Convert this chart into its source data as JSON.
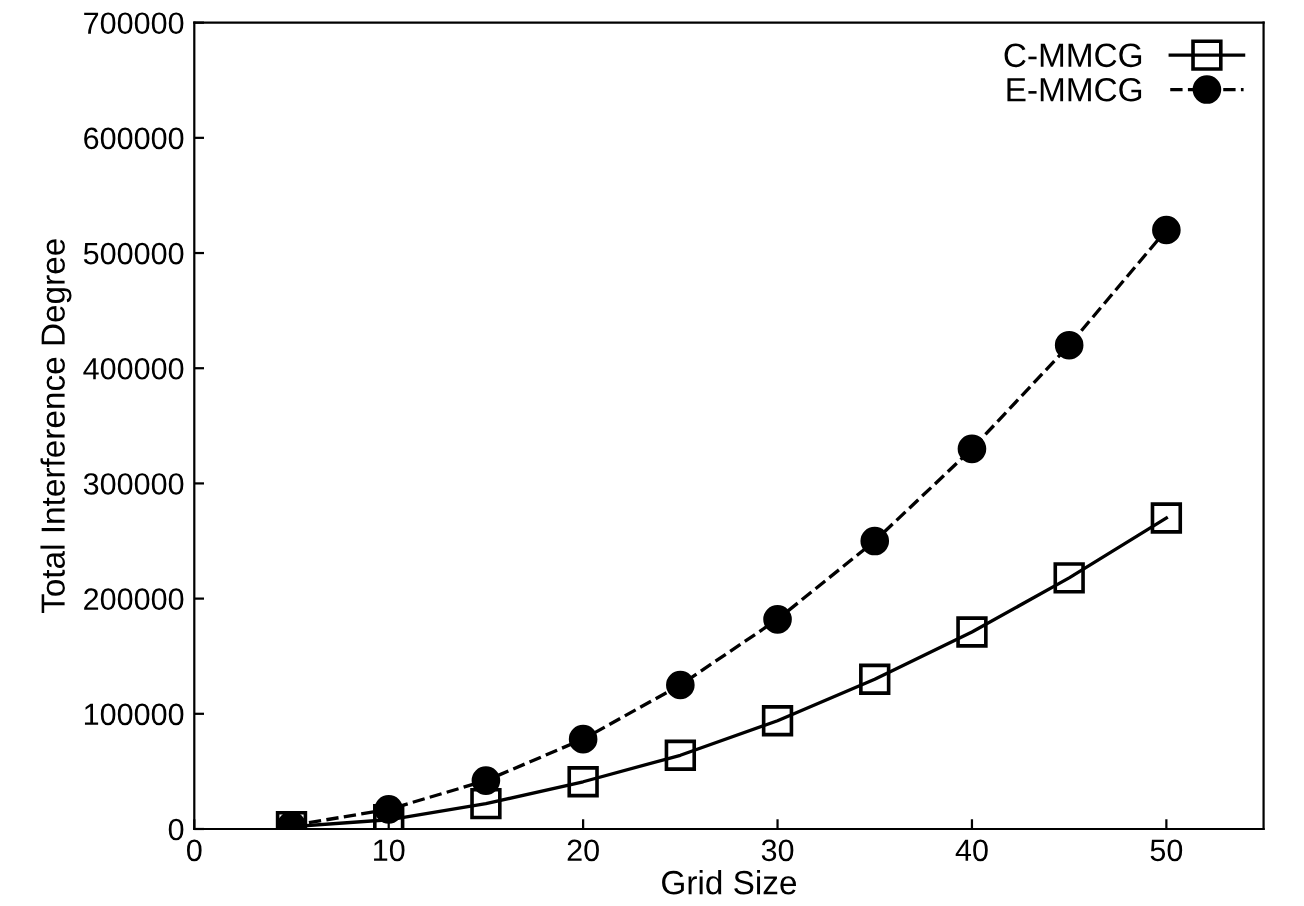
{
  "chart_data": {
    "type": "line",
    "xlabel": "Grid Size",
    "ylabel": "Total Interference Degree",
    "x": [
      5,
      10,
      15,
      20,
      25,
      30,
      35,
      40,
      45,
      50
    ],
    "series": [
      {
        "name": "C-MMCG",
        "color": "#000000",
        "marker": "square",
        "line_style": "solid",
        "values": [
          2000,
          8000,
          22000,
          41000,
          64000,
          94000,
          130000,
          171000,
          218000,
          270000
        ]
      },
      {
        "name": "E-MMCG",
        "color": "#000000",
        "marker": "circle",
        "line_style": "dashed",
        "values": [
          3000,
          17000,
          42000,
          78000,
          125000,
          182000,
          250000,
          330000,
          420000,
          520000
        ]
      }
    ],
    "xlim": [
      0,
      55
    ],
    "xticks": [
      0,
      10,
      20,
      30,
      40,
      50
    ],
    "ylim": [
      0,
      700000
    ],
    "yticks": [
      0,
      100000,
      200000,
      300000,
      400000,
      500000,
      600000,
      700000
    ],
    "grid": false,
    "legend": "top right"
  }
}
